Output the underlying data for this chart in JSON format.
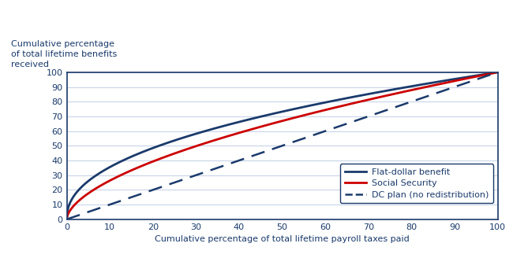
{
  "title_ylabel": "Cumulative percentage\nof total lifetime benefits\nreceived",
  "xlabel": "Cumulative percentage of total lifetime payroll taxes paid",
  "navy_color": "#1a3a6b",
  "red_color": "#cc0000",
  "background_color": "#ffffff",
  "grid_color": "#c8d4e8",
  "xlim": [
    0,
    100
  ],
  "ylim": [
    0,
    100
  ],
  "xticks": [
    0,
    10,
    20,
    30,
    40,
    50,
    60,
    70,
    80,
    90,
    100
  ],
  "yticks": [
    0,
    10,
    20,
    30,
    40,
    50,
    60,
    70,
    80,
    90,
    100
  ],
  "legend_labels": [
    "Flat-dollar benefit",
    "Social Security",
    "DC plan (no redistribution)"
  ],
  "flat_dollar_power": 0.45,
  "social_security_power": 0.58,
  "dc_plan_power": 1.0,
  "fig_width": 6.5,
  "fig_height": 3.28,
  "dpi": 100
}
